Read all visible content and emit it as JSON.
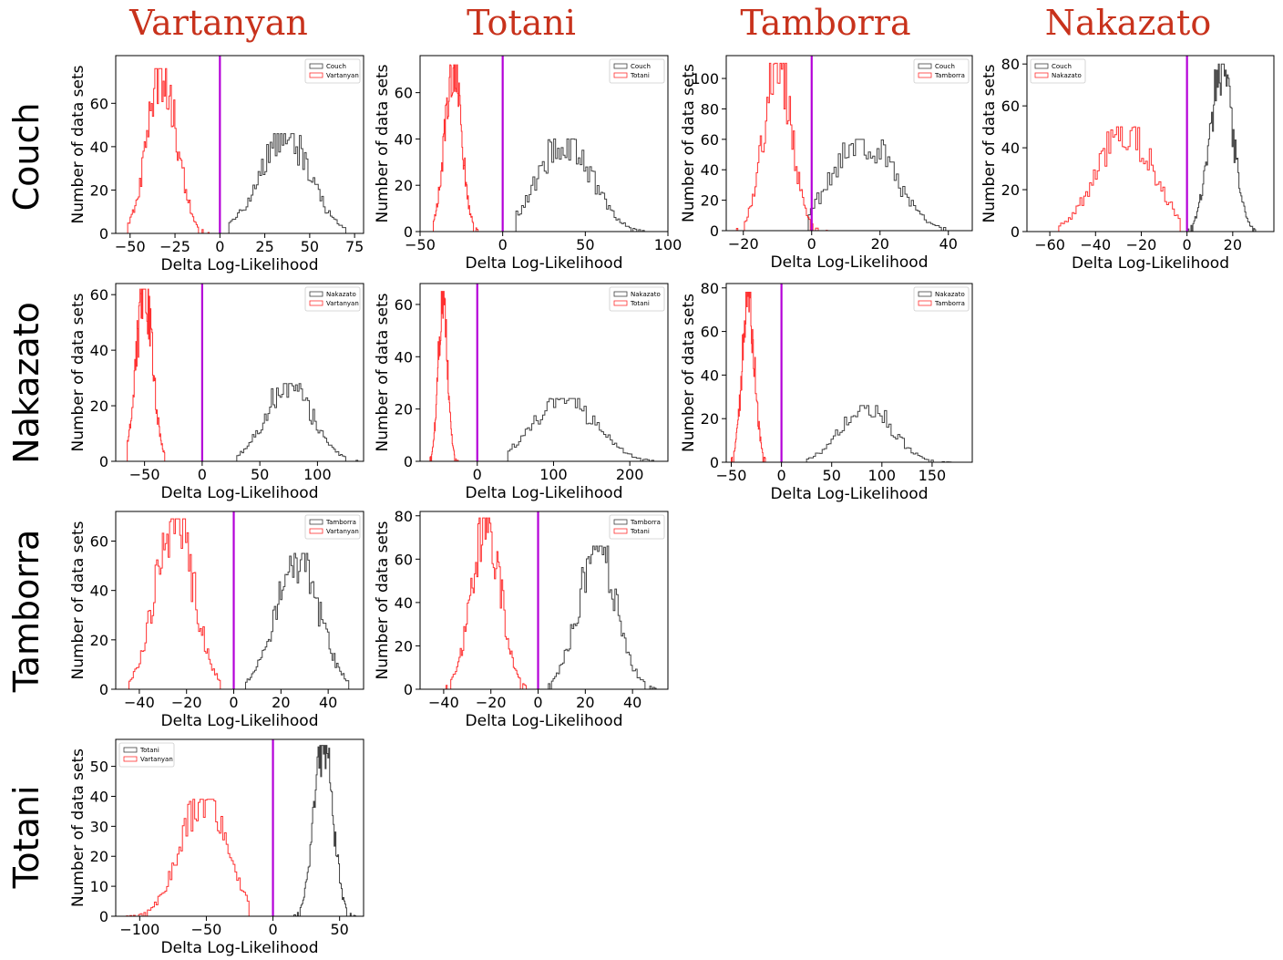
{
  "figure": {
    "column_titles": [
      "Vartanyan",
      "Totani",
      "Tamborra",
      "Nakazato"
    ],
    "row_titles": [
      "Couch",
      "Nakazato",
      "Tamborra",
      "Totani"
    ]
  },
  "colors": {
    "title_red": "#c8321c",
    "reference_series": "#404040",
    "comparison_series": "#ff3030",
    "zero_line": "#b400d8"
  },
  "chart_data": [
    {
      "type": "histogram",
      "xlabel": "Delta Log-Likelihood",
      "ylabel": "Number of data sets",
      "xlim": [
        -58,
        80
      ],
      "ylim": [
        0,
        82
      ],
      "xticks": [
        -50,
        -25,
        0,
        25,
        50,
        75
      ],
      "yticks": [
        0,
        20,
        40,
        60
      ],
      "legend_position": "top-right",
      "zero_line": 0,
      "series": [
        {
          "name": "Couch",
          "color": "#404040",
          "center": 36,
          "spread": 14,
          "peak": 46,
          "range": [
            5,
            72
          ]
        },
        {
          "name": "Vartanyan",
          "color": "#ff3030",
          "center": -32,
          "spread": 8,
          "peak": 76,
          "range": [
            -52,
            -6
          ]
        }
      ]
    },
    {
      "type": "histogram",
      "xlabel": "Delta Log-Likelihood",
      "ylabel": "Number of data sets",
      "xlim": [
        -50,
        100
      ],
      "ylim": [
        0,
        76
      ],
      "xticks": [
        -50,
        0,
        50,
        100
      ],
      "yticks": [
        0,
        20,
        40,
        60
      ],
      "legend_position": "top-right",
      "zero_line": 0,
      "series": [
        {
          "name": "Couch",
          "color": "#404040",
          "center": 38,
          "spread": 16,
          "peak": 40,
          "range": [
            8,
            88
          ]
        },
        {
          "name": "Totani",
          "color": "#ff3030",
          "center": -30,
          "spread": 5,
          "peak": 72,
          "range": [
            -42,
            -15
          ]
        }
      ]
    },
    {
      "type": "histogram",
      "xlabel": "Delta Log-Likelihood",
      "ylabel": "Number of data sets",
      "xlim": [
        -25,
        47
      ],
      "ylim": [
        0,
        115
      ],
      "xticks": [
        -20,
        0,
        20,
        40
      ],
      "yticks": [
        0,
        20,
        40,
        60,
        80,
        100
      ],
      "legend_position": "top-right",
      "zero_line": 0,
      "series": [
        {
          "name": "Couch",
          "color": "#404040",
          "center": 15,
          "spread": 9,
          "peak": 60,
          "range": [
            -1,
            43
          ]
        },
        {
          "name": "Tamborra",
          "color": "#ff3030",
          "center": -10,
          "spread": 4,
          "peak": 110,
          "range": [
            -22,
            5
          ]
        }
      ]
    },
    {
      "type": "histogram",
      "xlabel": "Delta Log-Likelihood",
      "ylabel": "Number of data sets",
      "xlim": [
        -70,
        38
      ],
      "ylim": [
        0,
        84
      ],
      "xticks": [
        -60,
        -40,
        -20,
        0,
        20
      ],
      "yticks": [
        0,
        20,
        40,
        60,
        80
      ],
      "legend_position": "top-left",
      "zero_line": 0,
      "series": [
        {
          "name": "Couch",
          "color": "#404040",
          "center": 15,
          "spread": 5,
          "peak": 80,
          "range": [
            0,
            30
          ]
        },
        {
          "name": "Nakazato",
          "color": "#ff3030",
          "center": -27,
          "spread": 12,
          "peak": 50,
          "range": [
            -62,
            -3
          ]
        }
      ]
    },
    {
      "type": "histogram",
      "xlabel": "Delta Log-Likelihood",
      "ylabel": "Number of data sets",
      "xlim": [
        -75,
        140
      ],
      "ylim": [
        0,
        64
      ],
      "xticks": [
        -50,
        0,
        50,
        100
      ],
      "yticks": [
        0,
        20,
        40,
        60
      ],
      "legend_position": "top-right",
      "zero_line": 0,
      "series": [
        {
          "name": "Nakazato",
          "color": "#404040",
          "center": 75,
          "spread": 20,
          "peak": 28,
          "range": [
            30,
            135
          ]
        },
        {
          "name": "Vartanyan",
          "color": "#ff3030",
          "center": -50,
          "spread": 7,
          "peak": 62,
          "range": [
            -65,
            -30
          ]
        }
      ]
    },
    {
      "type": "histogram",
      "xlabel": "Delta Log-Likelihood",
      "ylabel": "Number of data sets",
      "xlim": [
        -75,
        250
      ],
      "ylim": [
        0,
        68
      ],
      "xticks": [
        0,
        100,
        200
      ],
      "yticks": [
        0,
        20,
        40,
        60
      ],
      "legend_position": "top-right",
      "zero_line": 0,
      "series": [
        {
          "name": "Nakazato",
          "color": "#404040",
          "center": 115,
          "spread": 40,
          "peak": 24,
          "range": [
            40,
            240
          ]
        },
        {
          "name": "Totani",
          "color": "#ff3030",
          "center": -45,
          "spread": 6,
          "peak": 65,
          "range": [
            -62,
            -25
          ]
        }
      ]
    },
    {
      "type": "histogram",
      "xlabel": "Delta Log-Likelihood",
      "ylabel": "Number of data sets",
      "xlim": [
        -55,
        190
      ],
      "ylim": [
        0,
        82
      ],
      "xticks": [
        -50,
        0,
        50,
        100,
        150
      ],
      "yticks": [
        0,
        20,
        40,
        60,
        80
      ],
      "legend_position": "top-right",
      "zero_line": 0,
      "series": [
        {
          "name": "Nakazato",
          "color": "#404040",
          "center": 85,
          "spread": 25,
          "peak": 26,
          "range": [
            25,
            180
          ]
        },
        {
          "name": "Tamborra",
          "color": "#ff3030",
          "center": -33,
          "spread": 6,
          "peak": 78,
          "range": [
            -50,
            -15
          ]
        }
      ]
    },
    {
      "type": "histogram",
      "xlabel": "Delta Log-Likelihood",
      "ylabel": "Number of data sets",
      "xlim": [
        -50,
        55
      ],
      "ylim": [
        0,
        72
      ],
      "xticks": [
        -40,
        -20,
        0,
        20,
        40
      ],
      "yticks": [
        0,
        20,
        40,
        60
      ],
      "legend_position": "top-right",
      "zero_line": 0,
      "series": [
        {
          "name": "Tamborra",
          "color": "#404040",
          "center": 27,
          "spread": 9,
          "peak": 55,
          "range": [
            5,
            50
          ]
        },
        {
          "name": "Vartanyan",
          "color": "#ff3030",
          "center": -25,
          "spread": 8,
          "peak": 69,
          "range": [
            -45,
            -2
          ]
        }
      ]
    },
    {
      "type": "histogram",
      "xlabel": "Delta Log-Likelihood",
      "ylabel": "Number of data sets",
      "xlim": [
        -50,
        55
      ],
      "ylim": [
        0,
        82
      ],
      "xticks": [
        -40,
        -20,
        0,
        20,
        40
      ],
      "yticks": [
        0,
        20,
        40,
        60,
        80
      ],
      "legend_position": "top-right",
      "zero_line": 0,
      "series": [
        {
          "name": "Tamborra",
          "color": "#404040",
          "center": 25,
          "spread": 8,
          "peak": 66,
          "range": [
            3,
            50
          ]
        },
        {
          "name": "Totani",
          "color": "#ff3030",
          "center": -22,
          "spread": 6,
          "peak": 79,
          "range": [
            -40,
            -5
          ]
        }
      ]
    },
    {
      "type": "histogram",
      "xlabel": "Delta Log-Likelihood",
      "ylabel": "Number of data sets",
      "xlim": [
        -118,
        68
      ],
      "ylim": [
        0,
        59
      ],
      "xticks": [
        -100,
        -50,
        0,
        50
      ],
      "yticks": [
        0,
        10,
        20,
        30,
        40,
        50
      ],
      "legend_position": "top-left",
      "zero_line": 0,
      "series": [
        {
          "name": "Totani",
          "color": "#404040",
          "center": 38,
          "spread": 7,
          "peak": 57,
          "range": [
            15,
            62
          ]
        },
        {
          "name": "Vartanyan",
          "color": "#ff3030",
          "center": -52,
          "spread": 17,
          "peak": 39,
          "range": [
            -110,
            -18
          ]
        }
      ]
    }
  ]
}
